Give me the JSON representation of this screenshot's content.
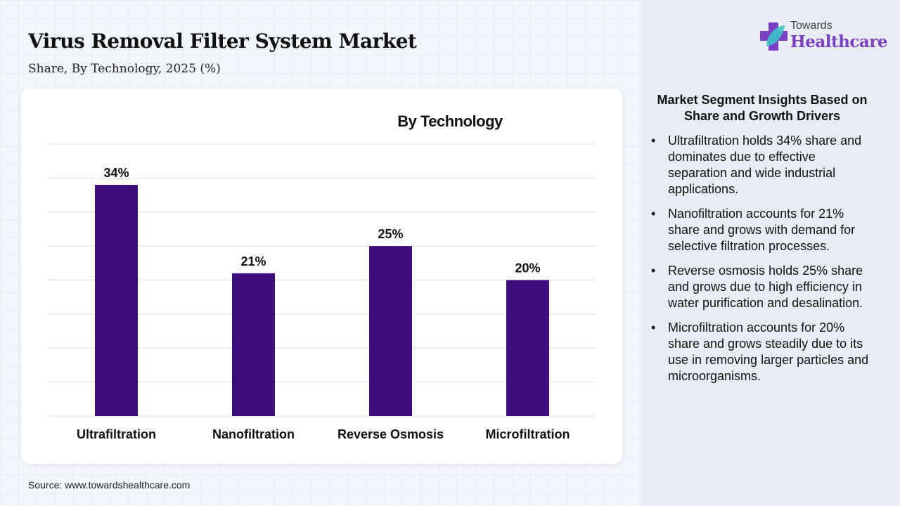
{
  "header": {
    "title": "Virus Removal Filter System Market",
    "subtitle": "Share, By Technology, 2025 (%)"
  },
  "logo": {
    "line1": "Towards",
    "line2": "Healthcare",
    "colors": {
      "cross": "#7a3fc4",
      "leaf": "#3fc1c9"
    }
  },
  "chart_data": {
    "type": "bar",
    "title": "By Technology",
    "categories": [
      "Ultrafiltration",
      "Nanofiltration",
      "Reverse Osmosis",
      "Microfiltration"
    ],
    "values": [
      34,
      21,
      25,
      20
    ],
    "data_labels": [
      "34%",
      "21%",
      "25%",
      "20%"
    ],
    "ylim": [
      0,
      40
    ],
    "grid": true,
    "bar_color": "#3d0f7c",
    "xlabel": "",
    "ylabel": ""
  },
  "source": "Source: www.towardshealthcare.com",
  "insights": {
    "title": "Market Segment Insights Based on Share and Growth Drivers",
    "items": [
      "Ultrafiltration holds 34% share and dominates due to effective separation and wide industrial applications.",
      "Nanofiltration accounts for 21% share and grows with demand for selective filtration processes.",
      "Reverse osmosis holds 25% share and grows due to high efficiency in water purification and desalination.",
      "Microfiltration accounts for 20% share and grows steadily due to its use in removing larger particles and microorganisms."
    ]
  }
}
